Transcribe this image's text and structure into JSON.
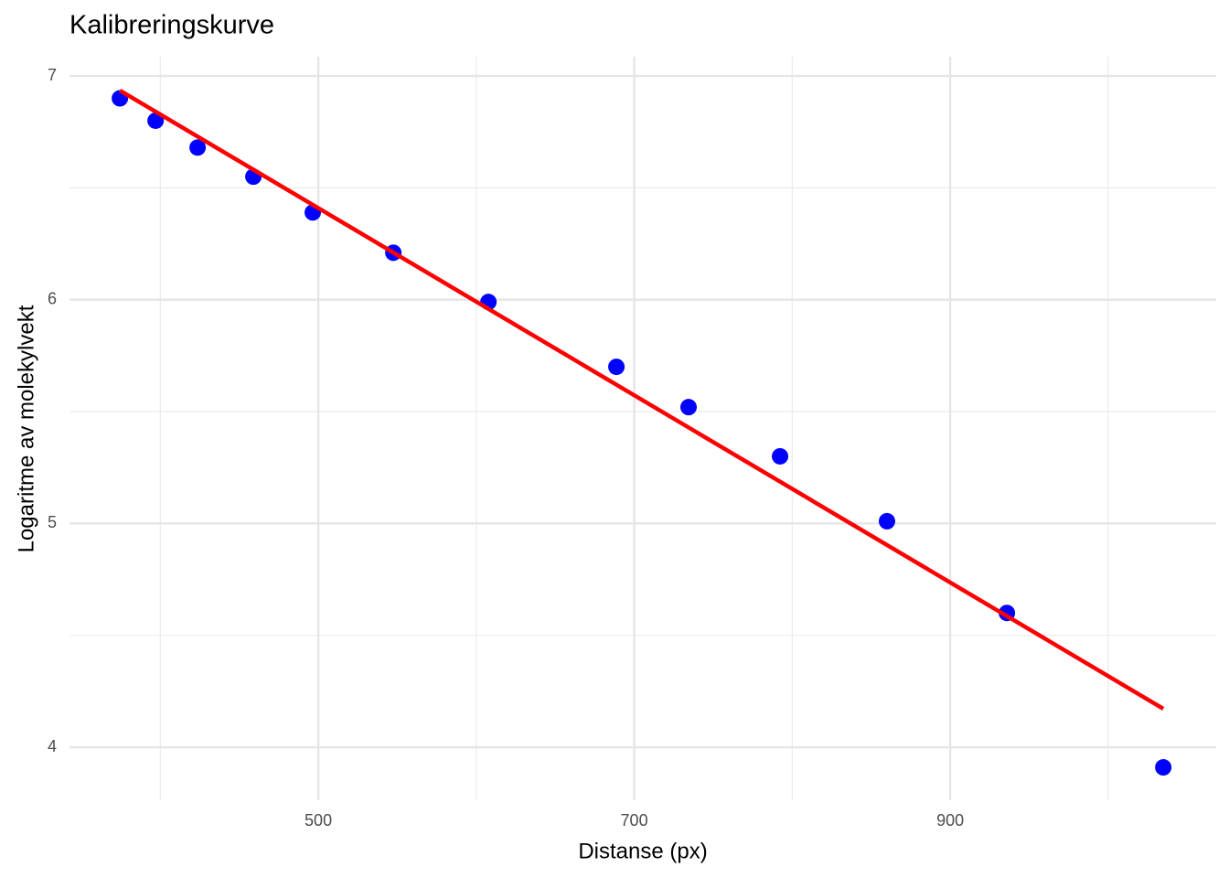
{
  "chart_data": {
    "type": "scatter",
    "title": "Kalibreringskurve",
    "x_label": "Distanse (px)",
    "y_label": "Logaritme av molekylvekt",
    "series": [
      {
        "color": "#0000ff",
        "x": [
          374.4,
          397,
          423.6,
          458.9,
          496.5,
          547.5,
          607.7,
          688.7,
          734.4,
          792.3,
          860,
          935.9,
          1034.9
        ],
        "values": [
          6.9,
          6.8,
          6.68,
          6.55,
          6.39,
          6.21,
          5.99,
          5.7,
          5.52,
          5.3,
          5.01,
          4.6,
          3.91
        ]
      }
    ],
    "trend_line": {
      "color": "#ff0000",
      "x": [
        374.4,
        1034.9
      ],
      "values": [
        6.935,
        4.172
      ]
    },
    "xlim": [
      342.5,
      1068.4
    ],
    "ylim": [
      3.763,
      7.086
    ],
    "xticks": [
      500,
      700,
      900
    ],
    "yticks": [
      4,
      5,
      6,
      7
    ],
    "x_minor_ticks": [
      400,
      600,
      800,
      1000
    ],
    "y_minor_ticks": [
      4.5,
      5.5,
      6.5
    ],
    "grid": true
  }
}
